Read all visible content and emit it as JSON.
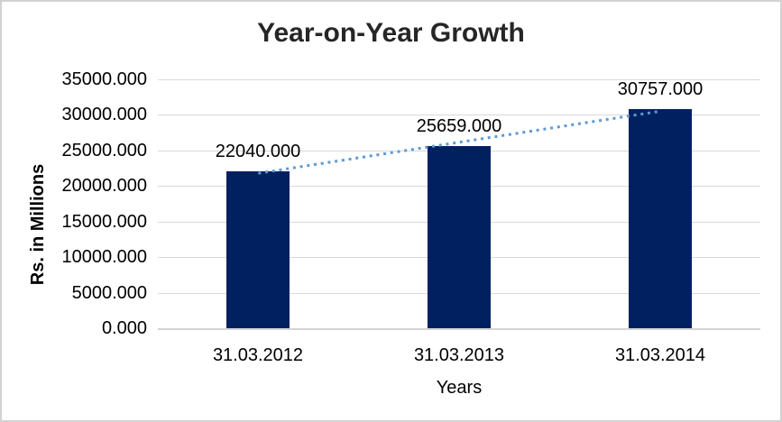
{
  "chart_data": {
    "type": "bar",
    "title": "Year-on-Year Growth",
    "ylabel": "Rs. in Millions",
    "xlabel": "Years",
    "categories": [
      "31.03.2012",
      "31.03.2013",
      "31.03.2014"
    ],
    "values": [
      22040,
      25659,
      30757
    ],
    "data_labels": [
      "22040.000",
      "25659.000",
      "30757.000"
    ],
    "ylim": [
      0,
      35000
    ],
    "ytick_step": 5000,
    "ytick_labels": [
      "0.000",
      "5000.000",
      "10000.000",
      "15000.000",
      "20000.000",
      "25000.000",
      "30000.000",
      "35000.000"
    ],
    "grid": true,
    "legend": false,
    "trendline": {
      "type": "linear",
      "style": "dotted"
    },
    "colors": {
      "bar": "#002060",
      "trendline": "#5b9bd5",
      "gridline": "#d9d9d9",
      "axis_line": "#d4d4d4",
      "title_text": "#262626",
      "tick_text": "#000000",
      "chart_border": "#d2d2d2",
      "background": "#ffffff"
    }
  }
}
